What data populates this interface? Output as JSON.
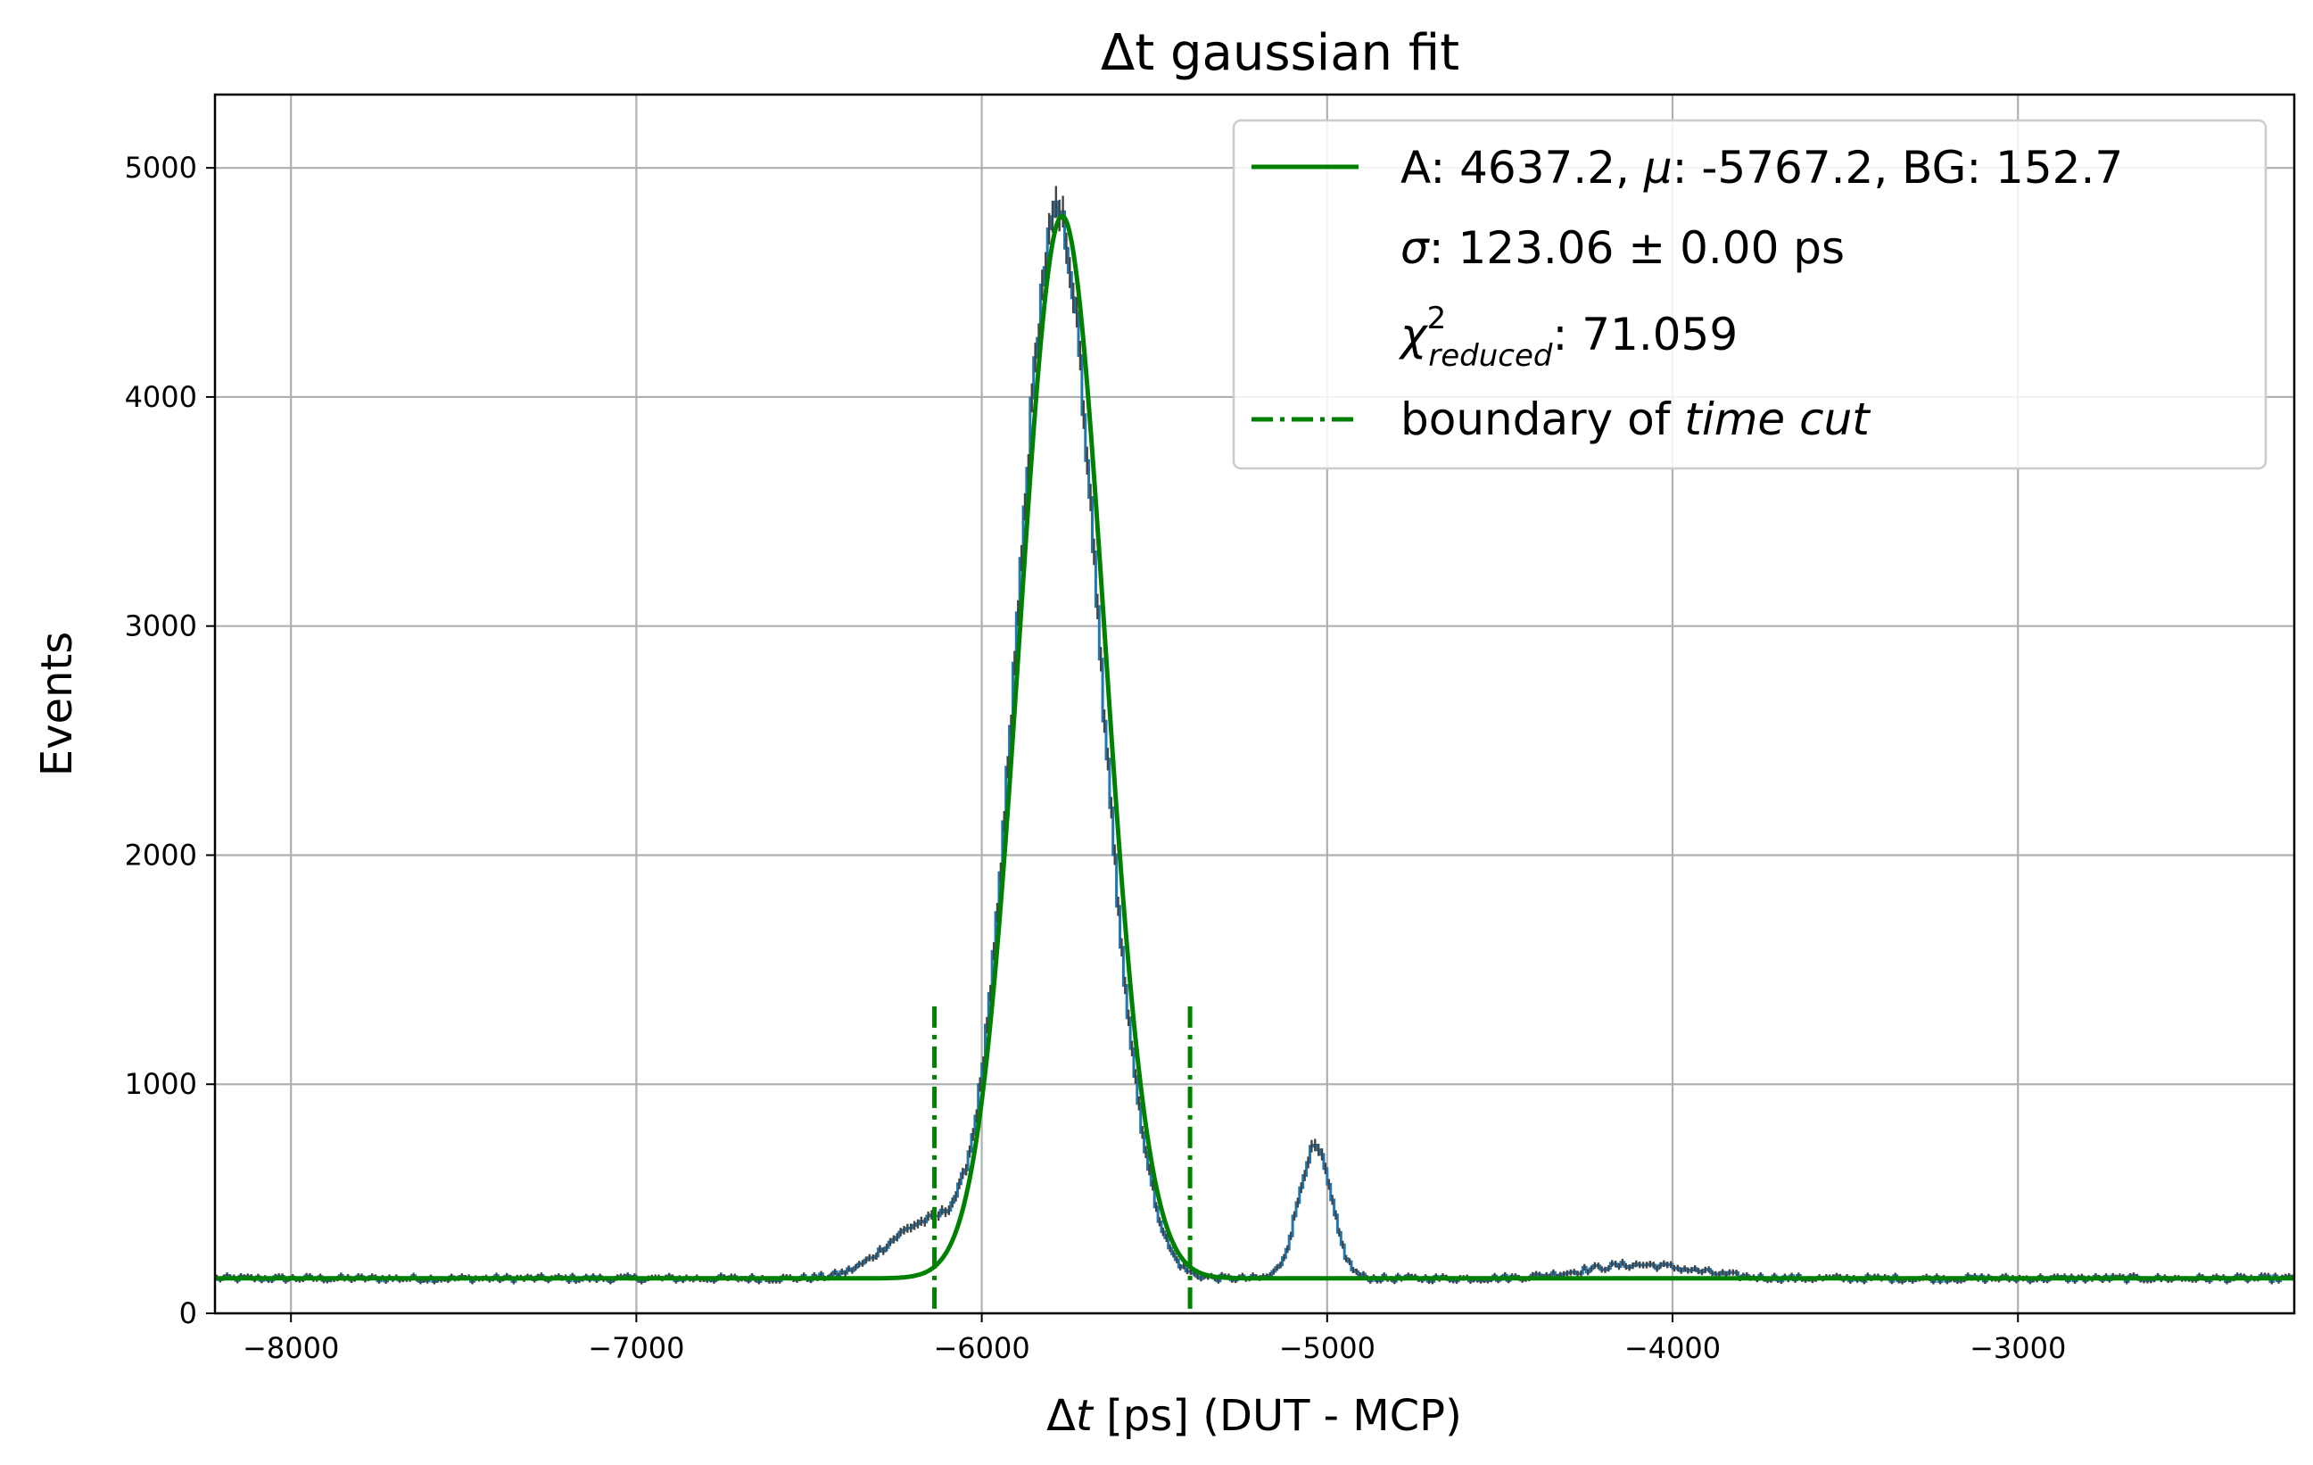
{
  "chart_data": {
    "type": "line",
    "title": "Δt gaussian fit",
    "xlabel": "Δt [ps] (DUT - MCP)",
    "xlabel_parts": {
      "delta": "Δ",
      "var": "t",
      "rest": " [ps] (DUT - MCP)"
    },
    "ylabel": "Events",
    "xlim": [
      -8220,
      -2200
    ],
    "ylim": [
      0,
      5320
    ],
    "x_ticks": [
      -8000,
      -7000,
      -6000,
      -5000,
      -4000,
      -3000
    ],
    "x_tick_labels": [
      "−8000",
      "−7000",
      "−6000",
      "−5000",
      "−4000",
      "−3000"
    ],
    "y_ticks": [
      0,
      1000,
      2000,
      3000,
      4000,
      5000
    ],
    "y_tick_labels": [
      "0",
      "1000",
      "2000",
      "3000",
      "4000",
      "5000"
    ],
    "grid": true,
    "legend_position": "top-right",
    "histogram": {
      "bin_width": 10,
      "baseline": 152,
      "noise_amplitude": 12,
      "color": "#1f77b4",
      "errorbar_color": "#444444",
      "components": [
        {
          "A": 4640,
          "mu": -5780,
          "sigma": 118
        },
        {
          "A": 230,
          "mu": -6170,
          "sigma": 110
        },
        {
          "A": 130,
          "mu": -5560,
          "sigma": 60
        },
        {
          "A": 570,
          "mu": -5035,
          "sigma": 48
        },
        {
          "A": 60,
          "mu": -4100,
          "sigma": 160
        }
      ]
    },
    "fit": {
      "A": 4637.2,
      "mu": -5767.2,
      "sigma": 123.06,
      "BG": 152.7,
      "color": "#008000"
    },
    "cut_lines": {
      "x": [
        -6137,
        -5397
      ],
      "y_top": 1340,
      "color": "#008000"
    },
    "legend": [
      {
        "style": "solid",
        "lines": [
          {
            "parts": [
              "A: 4637.2, ",
              "μ",
              ": -5767.2, BG:  152.7"
            ]
          },
          {
            "parts": [
              "σ",
              ": 123.06 ± 0.00 ps"
            ]
          },
          {
            "parts": [
              "χ",
              "2",
              "reduced",
              ":  71.059"
            ]
          }
        ]
      },
      {
        "style": "dashdot",
        "lines": [
          {
            "parts": [
              "boundary of ",
              "time cut"
            ]
          }
        ]
      }
    ]
  }
}
